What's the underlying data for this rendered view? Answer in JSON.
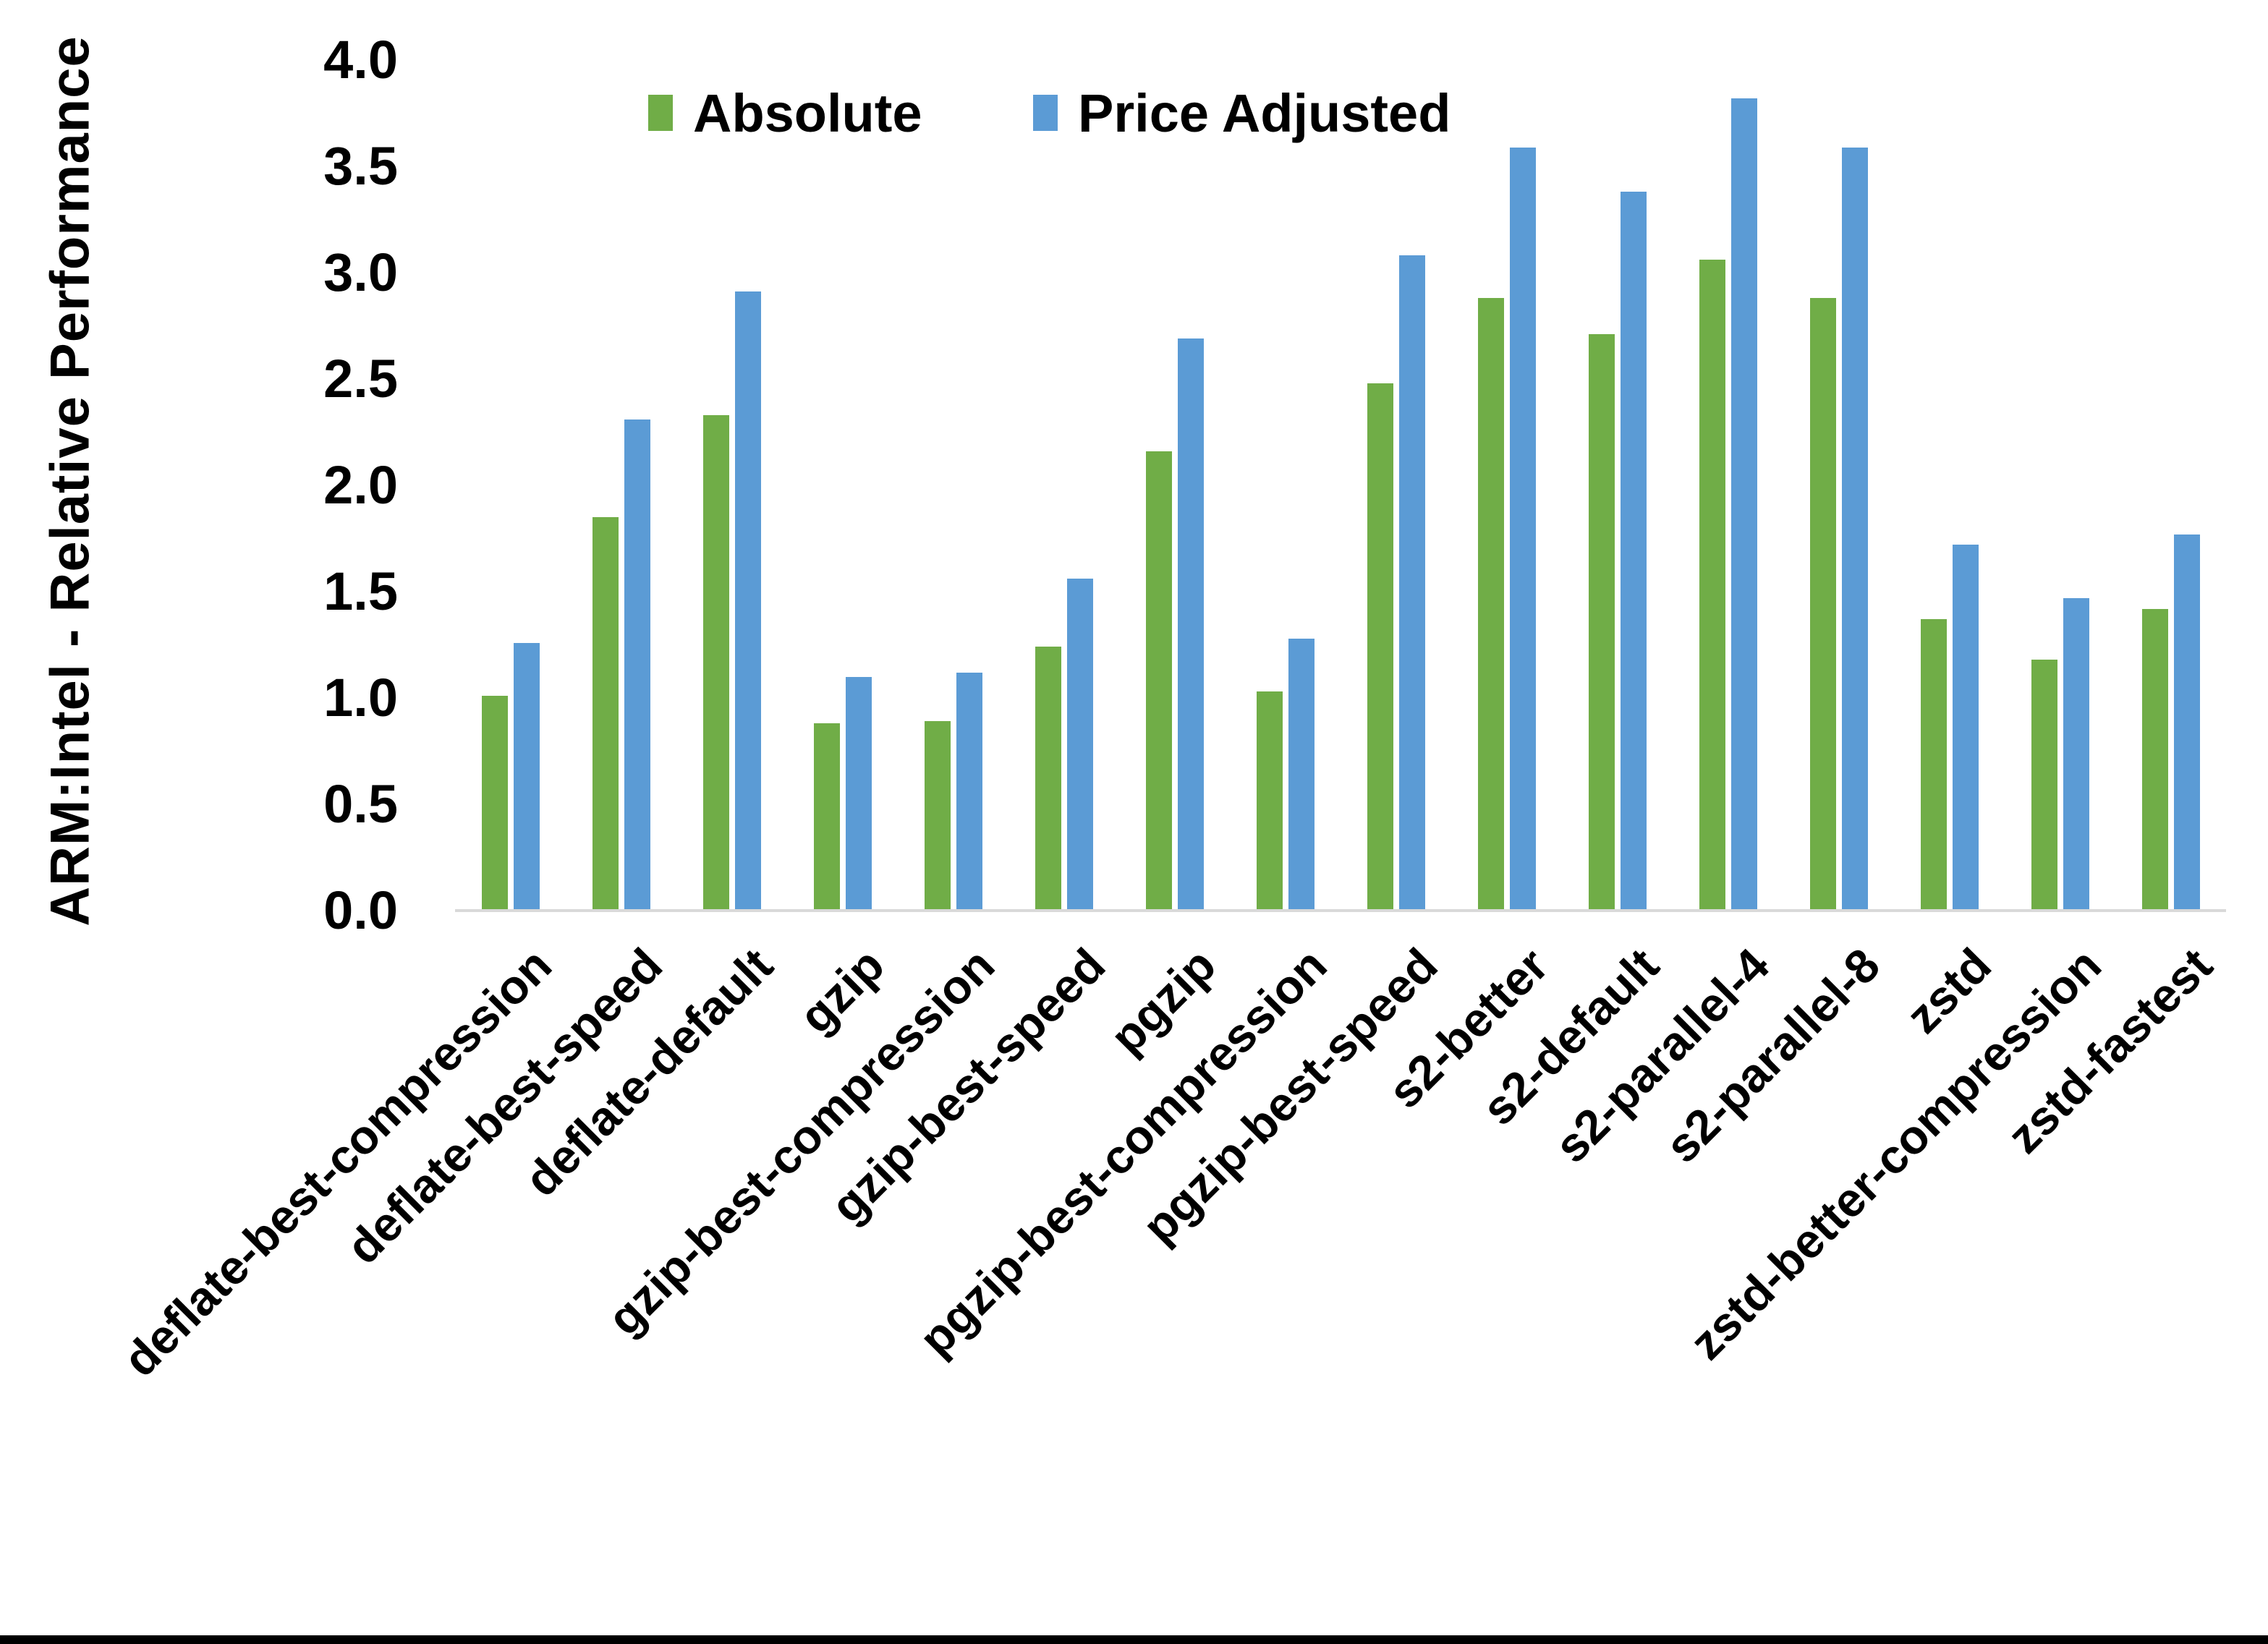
{
  "page": {
    "background_color": "#ffffff",
    "bottom_border_color": "#000000"
  },
  "chart_data": {
    "type": "bar",
    "title": "",
    "xlabel": "",
    "ylabel": "ARM:Intel - Relative Performance",
    "ylim": [
      0,
      4.0
    ],
    "ytick_step": 0.5,
    "ytick_format_decimals": 1,
    "grid": false,
    "legend_position": "top-center-inside",
    "axis_line_color": "#D9D9D9",
    "text_color": "#000000",
    "categories": [
      "deflate-best-compression",
      "deflate-best-speed",
      "deflate-default",
      "gzip",
      "gzip-best-compression",
      "gzip-best-speed",
      "pgzip",
      "pgzip-best-compression",
      "pgzip-best-speed",
      "s2-better",
      "s2-default",
      "s2-parallel-4",
      "s2-parallel-8",
      "zstd",
      "zstd-better-compression",
      "zstd-fastest"
    ],
    "series": [
      {
        "name": "Absolute",
        "color": "#70AD47",
        "values": [
          1.01,
          1.85,
          2.33,
          0.88,
          0.89,
          1.24,
          2.16,
          1.03,
          2.48,
          2.88,
          2.71,
          3.06,
          2.88,
          1.37,
          1.18,
          1.42
        ]
      },
      {
        "name": "Price Adjusted",
        "color": "#5B9BD5",
        "values": [
          1.26,
          2.31,
          2.91,
          1.1,
          1.12,
          1.56,
          2.69,
          1.28,
          3.08,
          3.59,
          3.38,
          3.82,
          3.59,
          1.72,
          1.47,
          1.77
        ]
      }
    ]
  }
}
